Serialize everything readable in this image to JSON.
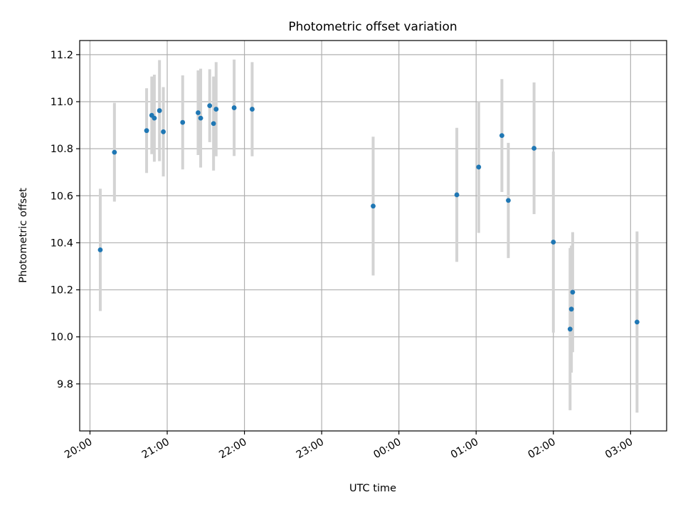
{
  "chart_data": {
    "type": "scatter",
    "title": "Photometric offset variation",
    "xlabel": "UTC time",
    "ylabel": "Photometric offset",
    "grid": true,
    "x_axis_kind": "time",
    "x_ticks": [
      "20:00",
      "21:00",
      "22:00",
      "23:00",
      "00:00",
      "01:00",
      "02:00",
      "03:00"
    ],
    "y_ticks": [
      "9.8",
      "10.0",
      "10.2",
      "10.4",
      "10.6",
      "10.8",
      "11.0",
      "11.2"
    ],
    "ylim": [
      9.6,
      11.26
    ],
    "xlim": [
      "19:52",
      "03:28"
    ],
    "colors": {
      "marker": "#1f77b4",
      "errorbar": "#d3d3d3",
      "grid": "#b0b0b0"
    },
    "points": [
      {
        "t": "20:08",
        "y": 10.37,
        "err": 0.26
      },
      {
        "t": "20:19",
        "y": 10.785,
        "err": 0.21
      },
      {
        "t": "20:44",
        "y": 10.877,
        "err": 0.18
      },
      {
        "t": "20:48",
        "y": 10.942,
        "err": 0.165
      },
      {
        "t": "20:50",
        "y": 10.93,
        "err": 0.185
      },
      {
        "t": "20:54",
        "y": 10.962,
        "err": 0.215
      },
      {
        "t": "20:57",
        "y": 10.872,
        "err": 0.19
      },
      {
        "t": "21:12",
        "y": 10.912,
        "err": 0.2
      },
      {
        "t": "21:24",
        "y": 10.953,
        "err": 0.18
      },
      {
        "t": "21:26",
        "y": 10.93,
        "err": 0.21
      },
      {
        "t": "21:33",
        "y": 10.983,
        "err": 0.155
      },
      {
        "t": "21:36",
        "y": 10.907,
        "err": 0.2
      },
      {
        "t": "21:38",
        "y": 10.968,
        "err": 0.2
      },
      {
        "t": "21:52",
        "y": 10.974,
        "err": 0.205
      },
      {
        "t": "22:06",
        "y": 10.968,
        "err": 0.2
      },
      {
        "t": "23:40",
        "y": 10.556,
        "err": 0.295
      },
      {
        "t": "00:45",
        "y": 10.604,
        "err": 0.285
      },
      {
        "t": "01:02",
        "y": 10.722,
        "err": 0.28
      },
      {
        "t": "01:20",
        "y": 10.856,
        "err": 0.24
      },
      {
        "t": "01:25",
        "y": 10.58,
        "err": 0.245
      },
      {
        "t": "01:45",
        "y": 10.802,
        "err": 0.28
      },
      {
        "t": "02:00",
        "y": 10.403,
        "err": 0.385
      },
      {
        "t": "02:13",
        "y": 10.033,
        "err": 0.345
      },
      {
        "t": "02:14",
        "y": 10.118,
        "err": 0.27
      },
      {
        "t": "02:15",
        "y": 10.19,
        "err": 0.255
      },
      {
        "t": "03:05",
        "y": 10.063,
        "err": 0.385
      }
    ]
  }
}
